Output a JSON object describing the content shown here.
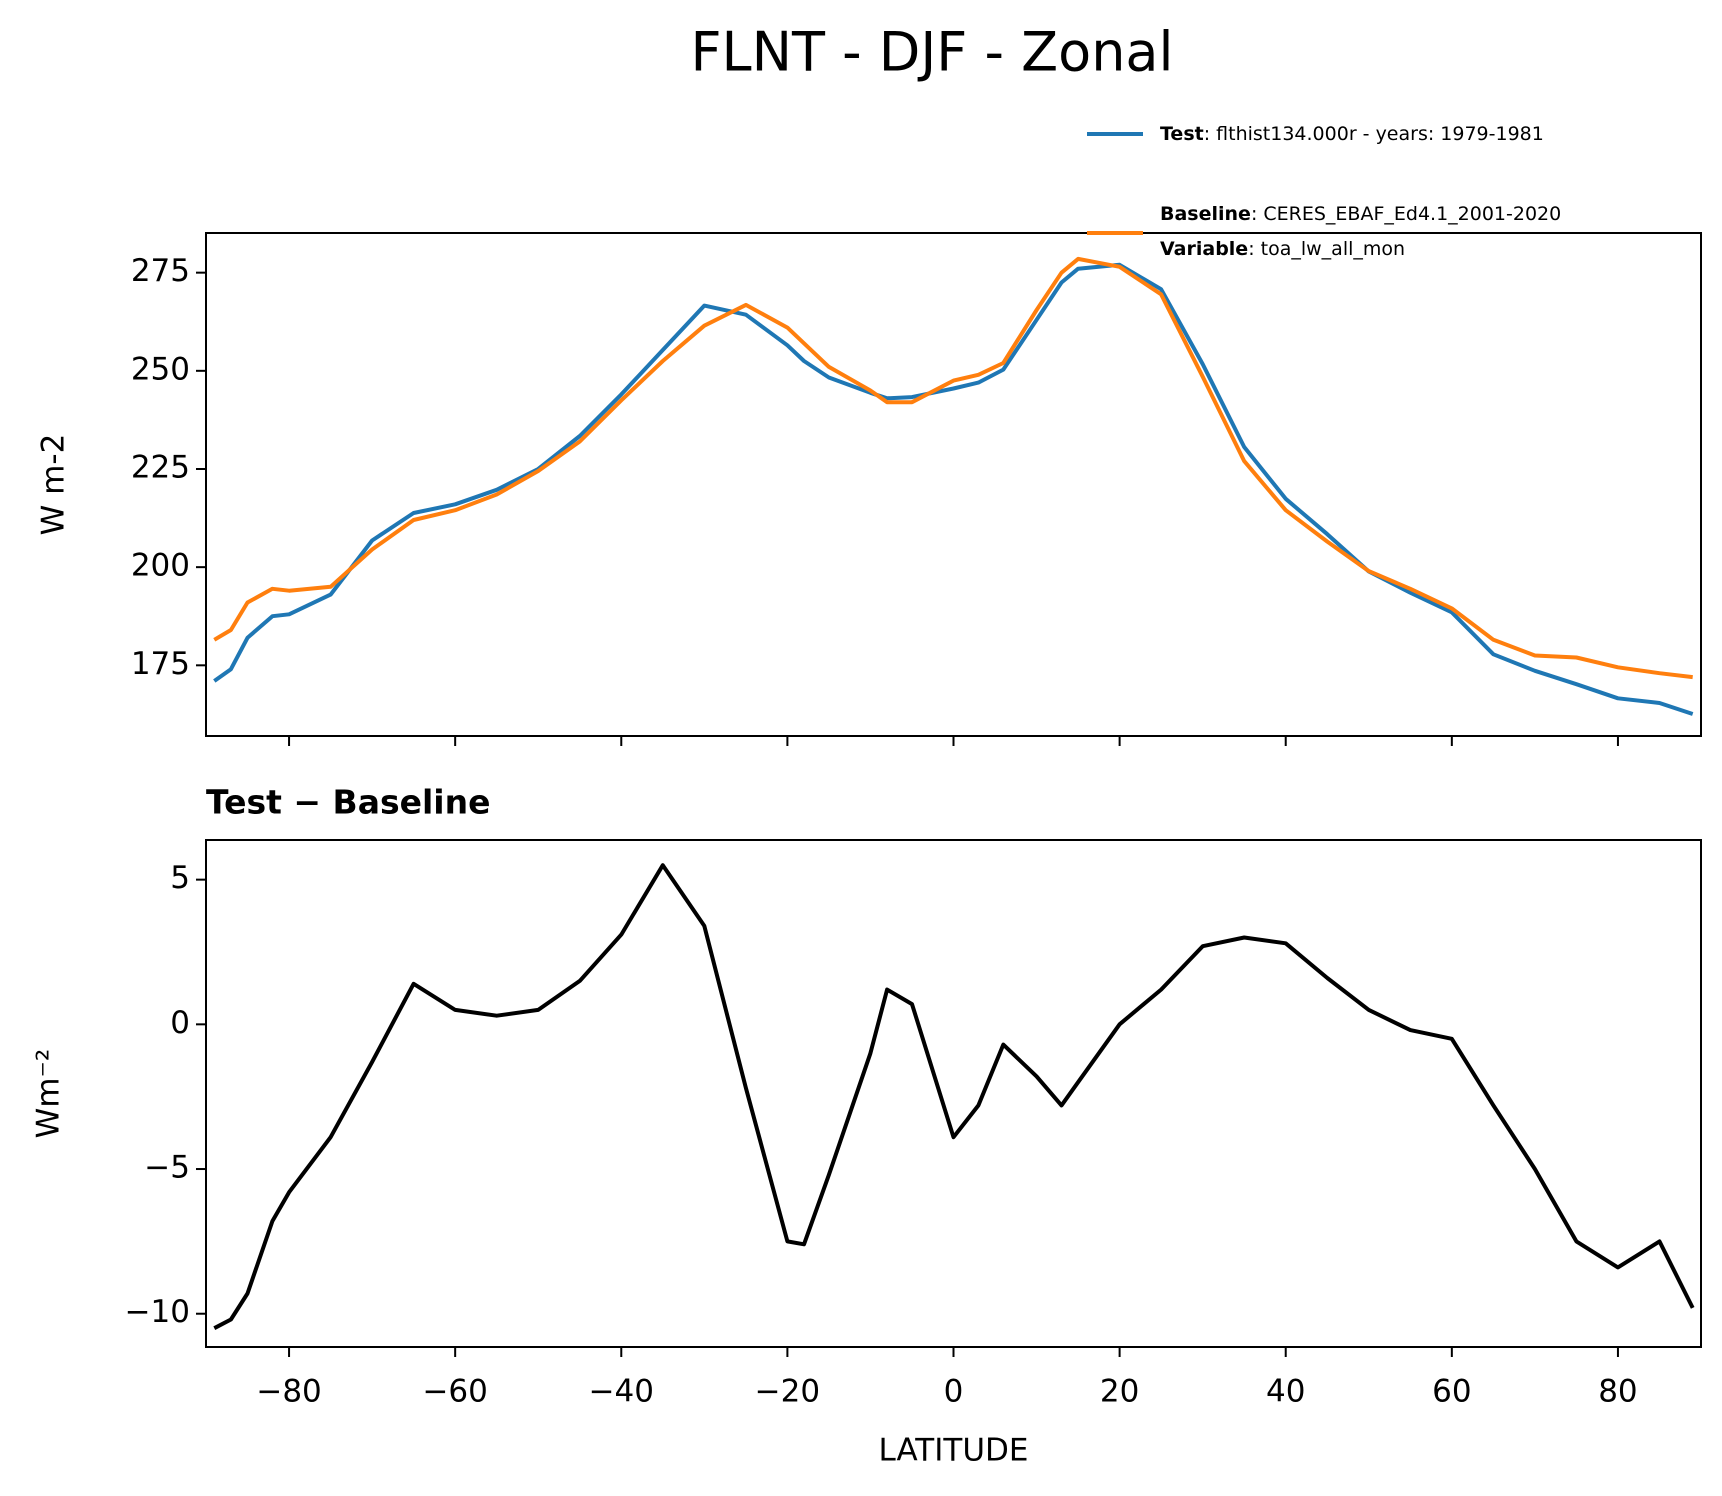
{
  "chart_data": [
    {
      "type": "line",
      "title": "FLNT - DJF - Zonal",
      "ylabel": "W m-2",
      "x": [
        -89,
        -87,
        -85,
        -82,
        -80,
        -75,
        -70,
        -65,
        -60,
        -55,
        -50,
        -45,
        -40,
        -35,
        -30,
        -25,
        -20,
        -18,
        -15,
        -10,
        -8,
        -5,
        0,
        3,
        6,
        10,
        13,
        15,
        20,
        25,
        30,
        35,
        40,
        45,
        50,
        55,
        60,
        65,
        70,
        75,
        80,
        85,
        89
      ],
      "series": [
        {
          "name": "Test",
          "description": ": flthist134.000r - years: 1979-1981",
          "color": "#1f77b4",
          "values": [
            171,
            174,
            182,
            187.5,
            188,
            193,
            206.8,
            213.8,
            216,
            219.7,
            225,
            233.4,
            244,
            255.3,
            266.6,
            264.3,
            256.5,
            252.5,
            248.3,
            244.4,
            243,
            243.3,
            245.5,
            247,
            250.3,
            263,
            272.5,
            276,
            277,
            270.8,
            251.7,
            230.6,
            217.4,
            208.4,
            198.9,
            193.5,
            188.5,
            177.8,
            173.6,
            170.2,
            166.6,
            165.4,
            162.6
          ]
        },
        {
          "name": "Baseline",
          "description": ": CERES_EBAF_Ed4.1_2001-2020",
          "extra_name": "Variable",
          "extra_description": ": toa_lw_all_mon",
          "color": "#ff7f0e",
          "values": [
            181.5,
            184,
            191,
            194.5,
            194,
            195,
            204.5,
            212,
            214.5,
            218.5,
            224.5,
            232,
            242.5,
            252.5,
            261.5,
            266.8,
            261,
            257,
            251,
            245,
            242,
            242,
            247.5,
            249,
            252,
            265.5,
            275,
            278.5,
            276.5,
            269.5,
            248.5,
            227,
            214.5,
            206.5,
            199,
            194.5,
            189.5,
            181.5,
            177.5,
            177,
            174.5,
            173,
            172
          ]
        }
      ],
      "xlim": [
        -90,
        90
      ],
      "xticks": [
        -80,
        -60,
        -40,
        -20,
        0,
        20,
        40,
        60,
        80
      ],
      "show_xtick_labels": false,
      "ylim": [
        157,
        285.1
      ],
      "yticks": [
        175,
        200,
        225,
        250,
        275
      ]
    },
    {
      "type": "line",
      "title": "Test − Baseline",
      "ylabel": "Wm⁻²",
      "xlabel": "LATITUDE",
      "x": [
        -89,
        -87,
        -85,
        -82,
        -80,
        -75,
        -70,
        -65,
        -60,
        -55,
        -50,
        -45,
        -40,
        -35,
        -30,
        -25,
        -20,
        -18,
        -15,
        -10,
        -8,
        -5,
        0,
        3,
        6,
        10,
        13,
        15,
        20,
        25,
        30,
        35,
        40,
        45,
        50,
        55,
        60,
        65,
        70,
        75,
        80,
        85,
        89
      ],
      "series": [
        {
          "color": "#000000",
          "values": [
            -10.5,
            -10.2,
            -9.3,
            -6.8,
            -5.8,
            -3.9,
            -1.3,
            1.4,
            0.5,
            0.3,
            0.5,
            1.5,
            3.1,
            5.5,
            3.4,
            -2.2,
            -7.5,
            -7.6,
            -5.2,
            -1,
            1.2,
            0.7,
            -3.9,
            -2.8,
            -0.7,
            -1.8,
            -2.8,
            -2,
            0,
            1.2,
            2.7,
            3,
            2.8,
            1.6,
            0.5,
            -0.2,
            -0.5,
            -2.8,
            -5,
            -7.5,
            -8.4,
            -7.5,
            -9.8
          ]
        }
      ],
      "xlim": [
        -90,
        90
      ],
      "xticks": [
        {
          "value": -80,
          "label": "−80"
        },
        {
          "value": -60,
          "label": "−60"
        },
        {
          "value": -40,
          "label": "−40"
        },
        {
          "value": -20,
          "label": "−20"
        },
        0,
        20,
        40,
        60,
        80
      ],
      "show_xtick_labels": true,
      "ylim": [
        -11.15,
        6.37
      ],
      "yticks": [
        {
          "value": -10,
          "label": "−10"
        },
        {
          "value": -5,
          "label": "−5"
        },
        0,
        5
      ]
    }
  ]
}
